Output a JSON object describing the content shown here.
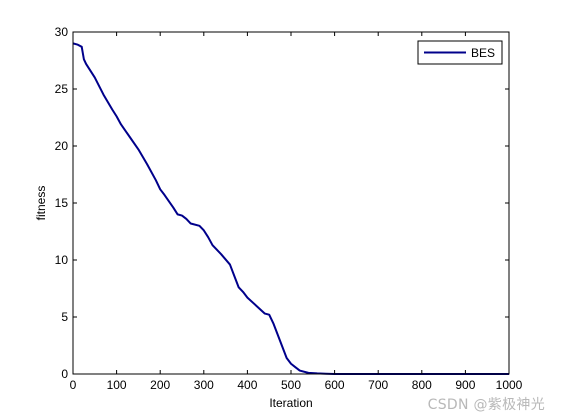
{
  "chart_data": {
    "type": "line",
    "xlabel": "Iteration",
    "ylabel": "fitness",
    "xlim": [
      0,
      1000
    ],
    "ylim": [
      0,
      30
    ],
    "xticks": [
      "0",
      "100",
      "200",
      "300",
      "400",
      "500",
      "600",
      "700",
      "800",
      "900",
      "1000"
    ],
    "yticks": [
      "0",
      "5",
      "10",
      "15",
      "20",
      "25",
      "30"
    ],
    "grid": false,
    "legend_position": "top-right",
    "series": [
      {
        "name": "BES",
        "color": "#00008b",
        "x": [
          0,
          10,
          20,
          25,
          30,
          50,
          70,
          90,
          100,
          110,
          130,
          150,
          170,
          190,
          200,
          210,
          230,
          240,
          250,
          260,
          270,
          290,
          300,
          310,
          320,
          340,
          360,
          370,
          380,
          390,
          400,
          420,
          440,
          450,
          460,
          470,
          480,
          490,
          500,
          510,
          520,
          540,
          560,
          580,
          600,
          700,
          800,
          900,
          1000
        ],
        "y": [
          29.0,
          28.9,
          28.7,
          27.6,
          27.2,
          26.0,
          24.5,
          23.2,
          22.6,
          21.9,
          20.8,
          19.7,
          18.4,
          17.0,
          16.2,
          15.7,
          14.6,
          14.0,
          13.9,
          13.6,
          13.2,
          13.0,
          12.6,
          12.0,
          11.3,
          10.5,
          9.6,
          8.6,
          7.6,
          7.2,
          6.7,
          6.0,
          5.3,
          5.2,
          4.4,
          3.4,
          2.4,
          1.4,
          0.9,
          0.6,
          0.3,
          0.1,
          0.05,
          0.02,
          0.0,
          0.0,
          0.0,
          0.0,
          0.0
        ]
      }
    ]
  },
  "watermark": "CSDN @紫极神光"
}
